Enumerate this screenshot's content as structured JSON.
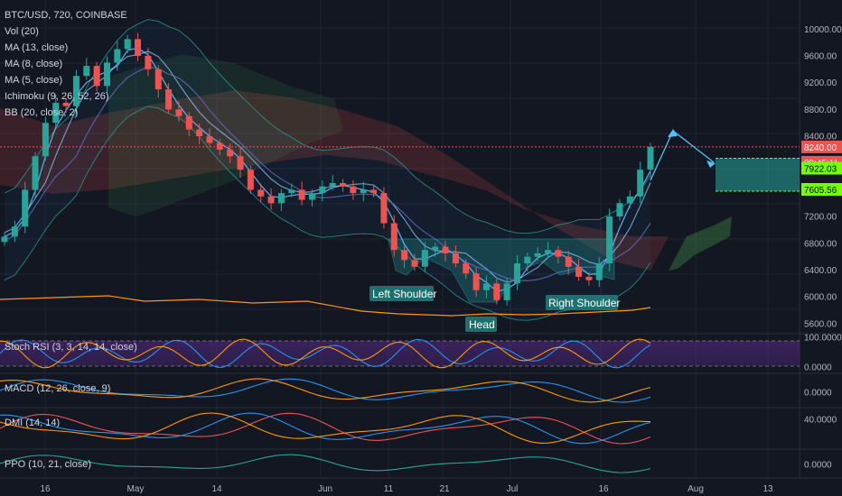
{
  "chart_data": {
    "type": "candlestick",
    "symbol_line": "BTC/USD, 720, COINBASE",
    "indicators": [
      "Vol (20)",
      "MA (13, close)",
      "MA (8, close)",
      "MA (5, close)",
      "Ichimoku (9, 26, 52, 26)",
      "BB (20, close, 2)"
    ],
    "price_axis": {
      "ticks": [
        "10000.00",
        "9600.00",
        "9200.00",
        "8800.00",
        "8400.00",
        "8000.00",
        "7600.00",
        "7200.00",
        "6800.00",
        "6400.00",
        "6000.00",
        "5600.00"
      ],
      "range": [
        5450,
        10300
      ]
    },
    "x_axis": {
      "ticks": [
        "16",
        "May",
        "14",
        "Jun",
        "11",
        "21",
        "Jul",
        "16",
        "Aug",
        "13"
      ]
    },
    "current_price": {
      "label": "8240.00",
      "value": 8240,
      "color": "#ef5350"
    },
    "countdown": {
      "label": "09:45:11",
      "color": "#ef5350"
    },
    "target_zone": {
      "upper": {
        "label": "7922.03",
        "value": 7922.03
      },
      "lower": {
        "label": "7605.56",
        "value": 7605.56
      },
      "color": "#26a69a"
    },
    "annotations": {
      "left_shoulder": "Left Shoulder",
      "head": "Head",
      "right_shoulder": "Right Shoulder"
    },
    "closes": [
      6900,
      7050,
      7600,
      8100,
      8600,
      8900,
      8850,
      9300,
      9450,
      9150,
      9500,
      9700,
      9850,
      9600,
      9400,
      9100,
      8800,
      8700,
      8500,
      8400,
      8300,
      8200,
      8100,
      7900,
      7600,
      7500,
      7400,
      7550,
      7600,
      7450,
      7550,
      7650,
      7700,
      7650,
      7550,
      7600,
      7550,
      7100,
      6700,
      6550,
      6450,
      6700,
      6750,
      6650,
      6500,
      6350,
      6100,
      6200,
      5950,
      6200,
      6500,
      6600,
      6650,
      6700,
      6600,
      6450,
      6300,
      6250,
      6500,
      7200,
      7400,
      7500,
      7900,
      8240
    ],
    "panes": [
      {
        "name": "Stoch RSI (3, 3, 14, 14, close)",
        "ticks": [
          "100.0000",
          "0.0000"
        ]
      },
      {
        "name": "MACD (12, 26, close, 9)",
        "ticks": [
          "0.0000"
        ]
      },
      {
        "name": "DMI (14, 14)",
        "ticks": [
          "40.0000"
        ]
      },
      {
        "name": "PPO (10, 21, close)",
        "ticks": [
          "0.0000"
        ]
      }
    ],
    "colors": {
      "up": "#26a69a",
      "down": "#ef5350",
      "background": "#131722",
      "axis_text": "#b2b5be"
    }
  }
}
